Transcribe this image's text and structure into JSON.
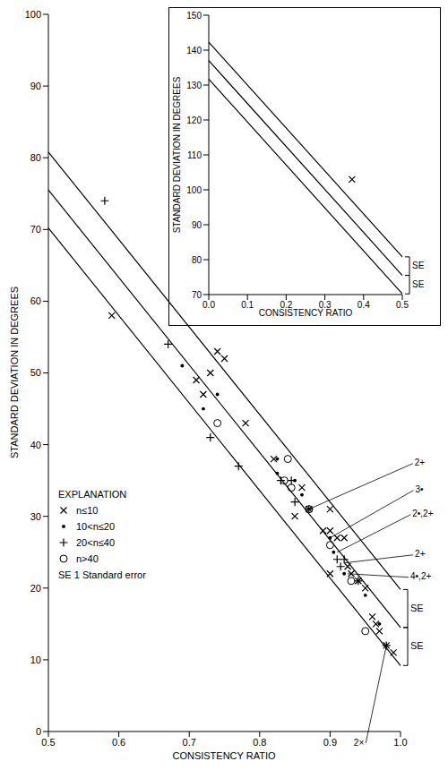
{
  "chart_data": [
    {
      "type": "scatter",
      "x_label": "CONSISTENCY RATIO",
      "y_label": "STANDARD DEVIATION IN DEGREES",
      "xlim": [
        0.5,
        1.0
      ],
      "xticks": [
        0.5,
        0.6,
        0.7,
        0.8,
        0.9,
        {
          "value": 1,
          "label": "1.0"
        }
      ],
      "ylim": [
        0,
        100
      ],
      "yticks": [
        0,
        10,
        20,
        30,
        40,
        50,
        60,
        70,
        80,
        90,
        100
      ],
      "legend": "lower left",
      "legend_title": "EXPLANATION",
      "legend_note": "SE 1 Standard error",
      "series": [
        {
          "name": "n≤10",
          "marker": "x",
          "color": "#000000",
          "x": [
            0.59,
            0.71,
            0.72,
            0.73,
            0.74,
            0.75,
            0.78,
            0.82,
            0.86,
            0.85,
            0.87,
            0.89,
            0.9,
            0.9,
            0.91,
            0.92,
            0.925,
            0.93,
            0.94,
            0.95,
            0.9,
            0.96,
            0.965,
            0.97,
            0.99,
            0.98
          ],
          "y": [
            58,
            49,
            47,
            50,
            53,
            52,
            43,
            38,
            34,
            30,
            31,
            28,
            31,
            28,
            27,
            27,
            23,
            22,
            21,
            20,
            22,
            16,
            15,
            14,
            11,
            12
          ]
        },
        {
          "name": "10<n≤20",
          "marker": "dot",
          "color": "#000000",
          "x": [
            0.69,
            0.72,
            0.74,
            0.825,
            0.825,
            0.85,
            0.86,
            0.9,
            0.905,
            0.92,
            0.95,
            0.97
          ],
          "y": [
            51,
            45,
            47,
            38,
            36,
            35,
            33,
            27,
            25,
            22,
            19,
            15
          ]
        },
        {
          "name": "20<n≤40",
          "marker": "plus",
          "color": "#000000",
          "x": [
            0.58,
            0.67,
            0.73,
            0.77,
            0.83,
            0.845,
            0.85,
            0.87,
            0.91,
            0.92,
            0.915,
            0.94,
            0.98
          ],
          "y": [
            74,
            54,
            41,
            37,
            35,
            35,
            32,
            31,
            24,
            24,
            23,
            21,
            12
          ]
        },
        {
          "name": "n>40",
          "marker": "circle",
          "color": "#000000",
          "x": [
            0.74,
            0.84,
            0.835,
            0.845,
            0.87,
            0.9,
            0.93,
            0.95
          ],
          "y": [
            43,
            38,
            35,
            34,
            31,
            26,
            21,
            14
          ]
        }
      ],
      "fit_lines": [
        {
          "x": [
            0.5,
            1.0
          ],
          "y": [
            80.8,
            19.8
          ],
          "color": "#000000",
          "line_style": "solid"
        },
        {
          "x": [
            0.5,
            1.0
          ],
          "y": [
            75.5,
            14.5
          ],
          "color": "#000000",
          "line_style": "solid"
        },
        {
          "x": [
            0.5,
            1.0
          ],
          "y": [
            70.2,
            9.2
          ],
          "color": "#000000",
          "line_style": "solid"
        }
      ],
      "se_brackets": [
        {
          "x": 1.0,
          "y": [
            19.8,
            14.5
          ],
          "label": "SE"
        },
        {
          "x": 1.0,
          "y": [
            14.5,
            9.2
          ],
          "label": "SE"
        }
      ],
      "annotations": [
        {
          "text": "2+",
          "x": 0.87,
          "y": 31
        },
        {
          "text": "3•",
          "x": 0.9,
          "y": 27
        },
        {
          "text": "2•,2+",
          "x": 0.91,
          "y": 25
        },
        {
          "text": "2+",
          "x": 0.92,
          "y": 23.5
        },
        {
          "text": "4•,2+",
          "x": 0.925,
          "y": 22
        },
        {
          "text": "2×",
          "x": 0.98,
          "y": 12
        }
      ]
    },
    {
      "type": "scatter",
      "x_label": "CONSISTENCY RATIO",
      "y_label": "STANDARD DEVIATION IN DEGREES",
      "xlim": [
        0,
        0.5
      ],
      "xticks": [
        {
          "value": 0,
          "label": "0.0"
        },
        0.1,
        0.2,
        0.3,
        0.4,
        0.5
      ],
      "ylim": [
        70,
        150
      ],
      "yticks": [
        70,
        80,
        90,
        100,
        110,
        120,
        130,
        140,
        150
      ],
      "series": [
        {
          "name": "n≤10",
          "marker": "x",
          "color": "#000000",
          "x": [
            0.37
          ],
          "y": [
            103
          ]
        }
      ],
      "fit_lines": [
        {
          "x": [
            0,
            0.5
          ],
          "y": [
            142.3,
            80.8
          ],
          "color": "#000000",
          "line_style": "solid"
        },
        {
          "x": [
            0,
            0.5
          ],
          "y": [
            137,
            75.5
          ],
          "color": "#000000",
          "line_style": "solid"
        },
        {
          "x": [
            0,
            0.5
          ],
          "y": [
            131.7,
            70.2
          ],
          "color": "#000000",
          "line_style": "solid"
        }
      ],
      "se_brackets": [
        {
          "x": 0.5,
          "y": [
            80.8,
            75.5
          ],
          "label": "SE"
        },
        {
          "x": 0.5,
          "y": [
            75.5,
            70.2
          ],
          "label": "SE"
        }
      ]
    }
  ]
}
